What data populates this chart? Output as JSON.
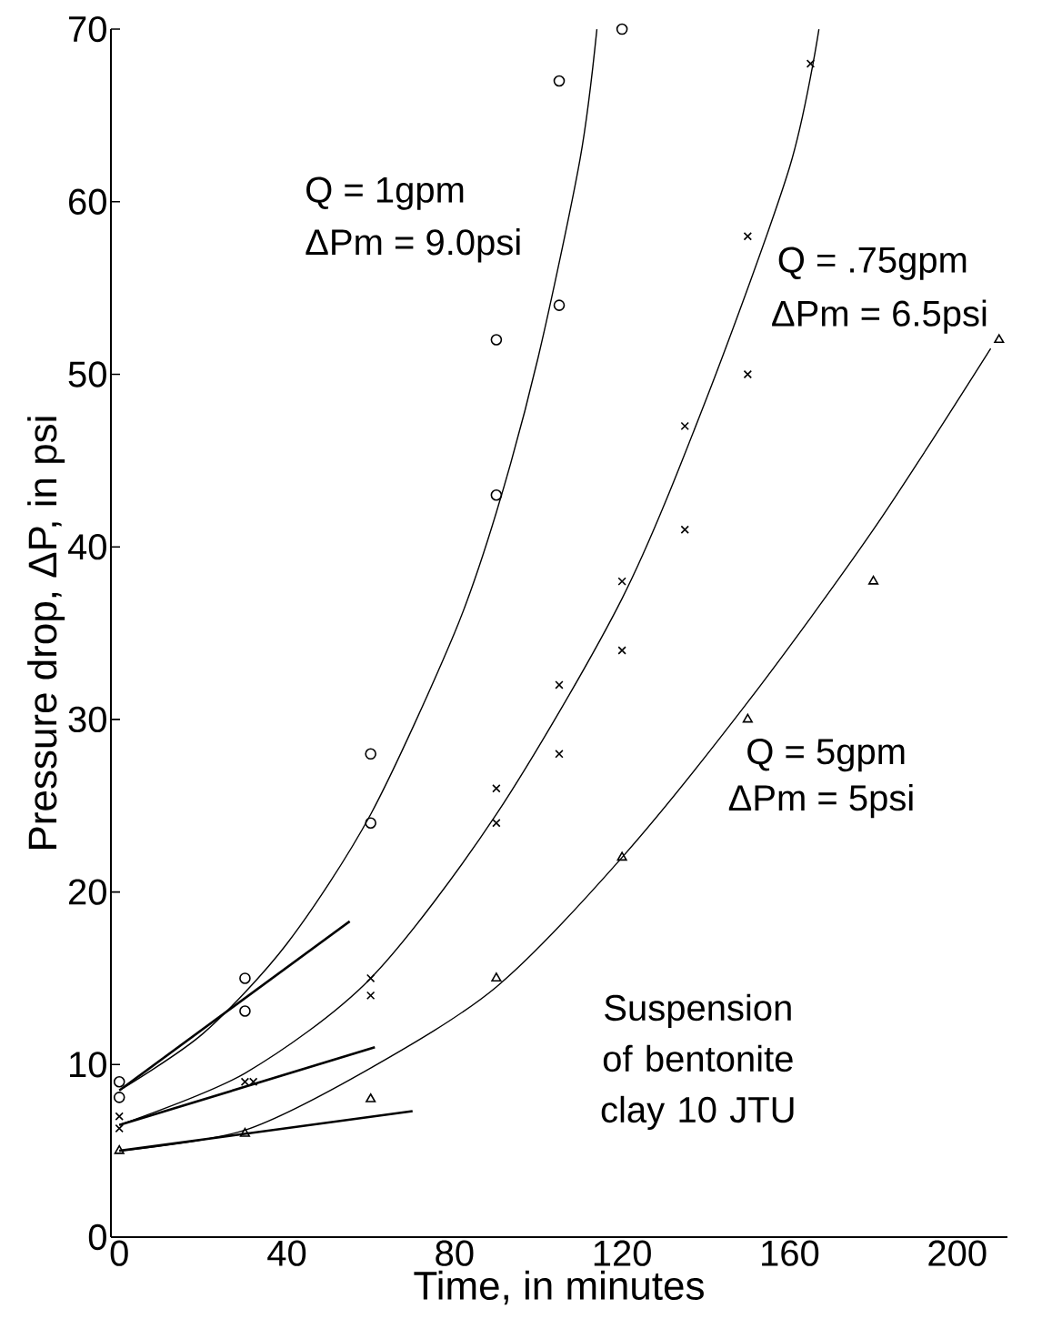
{
  "chart_data": {
    "type": "scatter",
    "xlabel": "Time, in minutes",
    "ylabel": "Pressure drop, ΔP, in psi",
    "xlim": [
      -2,
      212
    ],
    "ylim": [
      0,
      70
    ],
    "xticks": [
      0,
      40,
      80,
      120,
      160,
      200
    ],
    "yticks": [
      0,
      10,
      20,
      30,
      40,
      50,
      60,
      70
    ],
    "series": [
      {
        "marker": "circle",
        "color": "#000000",
        "x": [
          0,
          0,
          30,
          30,
          60,
          60,
          90,
          90,
          105,
          105,
          120
        ],
        "values": [
          9,
          8.1,
          15,
          13.1,
          28,
          24,
          52,
          43,
          67,
          54,
          70
        ]
      },
      {
        "marker": "cross",
        "color": "#000000",
        "x": [
          0,
          0,
          30,
          32,
          60,
          60,
          90,
          90,
          105,
          105,
          120,
          120,
          135,
          135,
          150,
          150,
          165
        ],
        "values": [
          7,
          6.3,
          9,
          9,
          15,
          14,
          26,
          24,
          32,
          28,
          38,
          34,
          47,
          41,
          58,
          50,
          68
        ]
      },
      {
        "marker": "triangle",
        "color": "#000000",
        "x": [
          0,
          30,
          60,
          90,
          120,
          150,
          180,
          210
        ],
        "values": [
          5,
          6,
          8,
          15,
          22,
          30,
          38,
          52
        ]
      },
      {
        "type": "line",
        "marker": "none",
        "color": "#000000",
        "x": [
          0,
          20,
          40,
          60,
          80,
          90,
          100,
          110,
          114
        ],
        "values": [
          8.5,
          11.8,
          17,
          24.5,
          35,
          42,
          51,
          62.5,
          70
        ]
      },
      {
        "type": "line",
        "marker": "none",
        "color": "#000000",
        "x": [
          0,
          30,
          60,
          90,
          120,
          140,
          160,
          167
        ],
        "values": [
          6.5,
          9.5,
          15,
          24.5,
          37,
          48.5,
          62,
          70
        ]
      },
      {
        "type": "line",
        "marker": "none",
        "color": "#000000",
        "x": [
          0,
          30,
          60,
          90,
          120,
          150,
          180,
          208
        ],
        "values": [
          5,
          6.2,
          9.8,
          14.5,
          22,
          31,
          41,
          51.5
        ]
      },
      {
        "type": "line",
        "marker": "none",
        "color": "#000000",
        "x": [
          0,
          55
        ],
        "values": [
          8.5,
          18.3
        ]
      },
      {
        "type": "line",
        "marker": "none",
        "color": "#000000",
        "x": [
          0,
          61
        ],
        "values": [
          6.5,
          11
        ]
      },
      {
        "type": "line",
        "marker": "none",
        "color": "#000000",
        "x": [
          0,
          70
        ],
        "values": [
          5,
          7.3
        ]
      }
    ],
    "annotations": [
      "Q = 1gpm",
      "ΔPm = 9.0psi",
      "Q = .75gpm",
      "ΔPm = 6.5psi",
      "Q = 5gpm",
      "ΔPm = 5psi",
      "Suspension of bentonite clay 10 JTU"
    ]
  }
}
